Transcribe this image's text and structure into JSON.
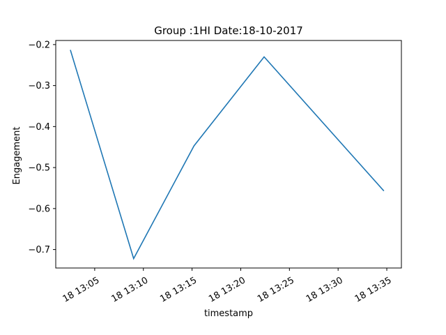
{
  "chart_data": {
    "type": "line",
    "title": "Group :1HI Date:18-10-2017",
    "xlabel": "timestamp",
    "ylabel": "Engagement",
    "x_tick_labels": [
      "18 13:05",
      "18 13:10",
      "18 13:15",
      "18 13:20",
      "18 13:25",
      "18 13:30",
      "18 13:35"
    ],
    "x_tick_minutes": [
      5,
      10,
      15,
      20,
      25,
      30,
      35
    ],
    "y_ticks": [
      -0.2,
      -0.3,
      -0.4,
      -0.5,
      -0.6,
      -0.7
    ],
    "y_tick_labels": [
      "−0.2",
      "−0.3",
      "−0.4",
      "−0.5",
      "−0.6",
      "−0.7"
    ],
    "xlim_minutes": [
      1,
      36.5
    ],
    "ylim": [
      -0.745,
      -0.19
    ],
    "grid": false,
    "series": [
      {
        "color": "#1f77b4",
        "x_minutes": [
          2.5,
          9.0,
          15.2,
          22.4,
          34.7
        ],
        "y": [
          -0.213,
          -0.722,
          -0.447,
          -0.23,
          -0.557
        ]
      }
    ]
  }
}
